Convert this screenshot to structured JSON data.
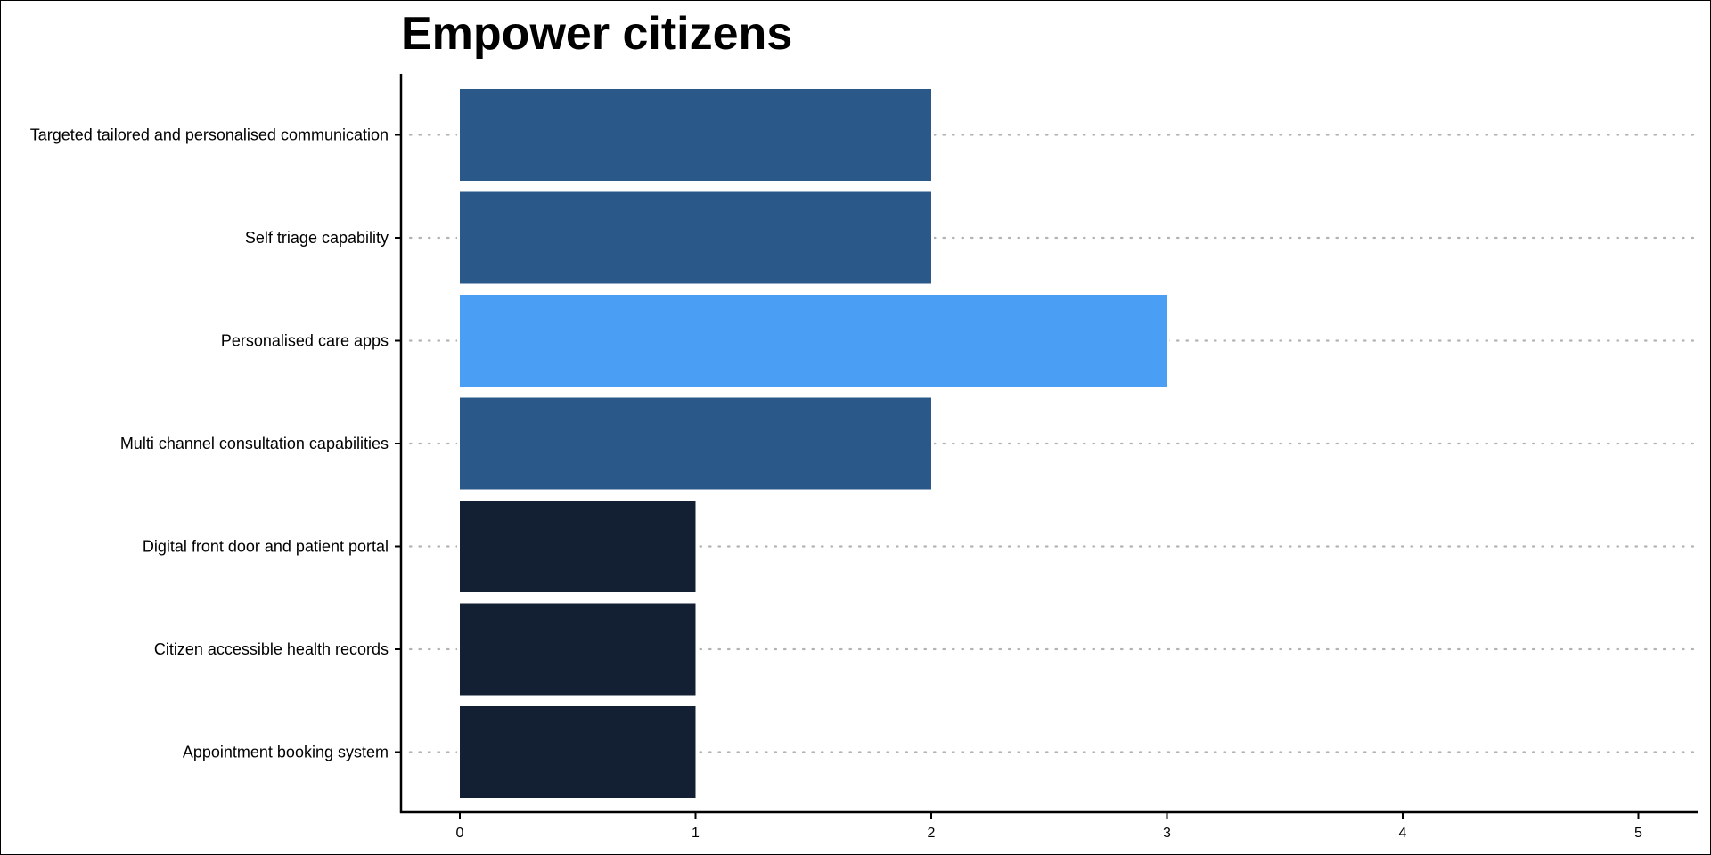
{
  "chart_data": {
    "type": "bar",
    "orientation": "horizontal",
    "title": "Empower citizens",
    "xlabel": "",
    "ylabel": "",
    "categories": [
      "Targeted tailored and personalised communication",
      "Self triage capability",
      "Personalised care apps",
      "Multi channel consultation capabilities",
      "Digital front door and patient portal",
      "Citizen accessible health records",
      "Appointment booking system"
    ],
    "values": [
      2,
      2,
      3,
      2,
      1,
      1,
      1
    ],
    "bar_colors": [
      "#2a5888",
      "#2a5888",
      "#4a9ff5",
      "#2a5888",
      "#132033",
      "#132033",
      "#132033"
    ],
    "xlim": [
      0,
      5
    ],
    "xticks": [
      "0",
      "1",
      "2",
      "3",
      "4",
      "5"
    ],
    "grid": "horizontal dotted guide per category",
    "legend": "none"
  }
}
